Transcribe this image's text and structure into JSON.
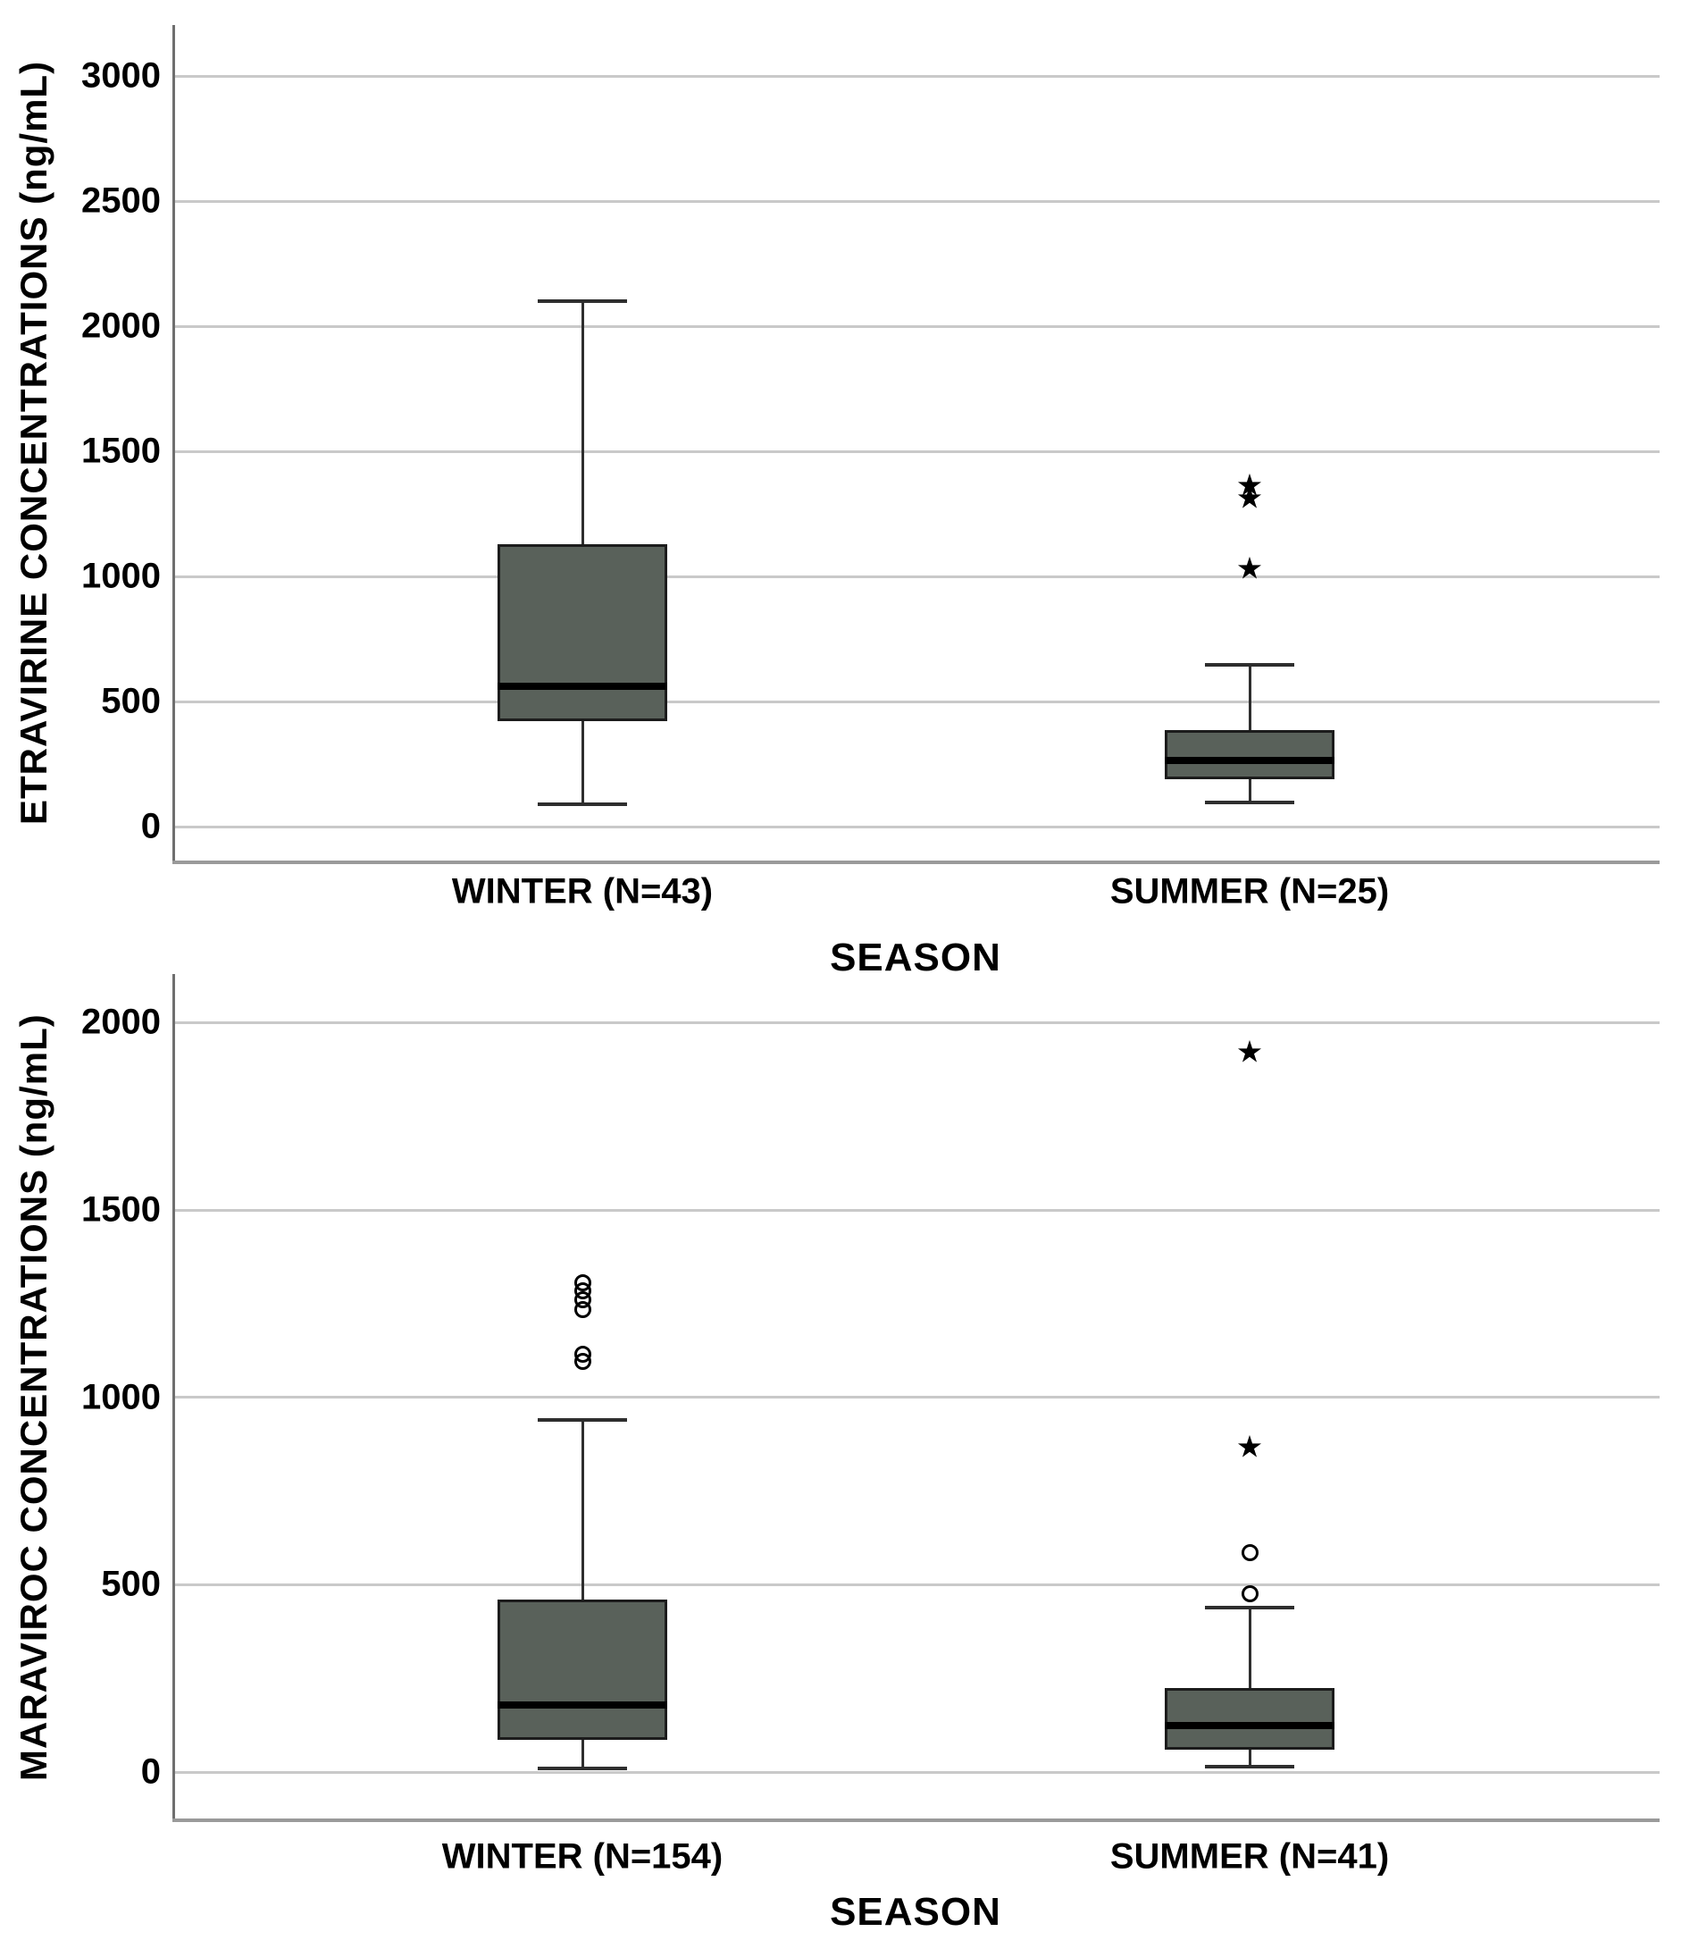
{
  "figure": {
    "background": "#ffffff",
    "colors": {
      "box_fill": "#59615a",
      "box_border": "#1c1c1c",
      "median": "#000000",
      "gridline": "#c9c9c9",
      "vertical_axis": "#6f6f6f",
      "bottom_axis": "#9a9a9a",
      "whisker": "#2e2e2e",
      "outlier": "#000000",
      "text": "#000000"
    }
  },
  "chart_data": [
    {
      "type": "box",
      "title": "",
      "ylabel": "ETRAVIRINE CONCENTRATIONS (ng/mL)",
      "xlabel": "SEASON",
      "yticks": [
        0,
        500,
        1000,
        1500,
        2000,
        2500,
        3000
      ],
      "ylim": [
        0,
        3100
      ],
      "grid": "horizontal",
      "legend_position": "none",
      "outlier_marker": "circle",
      "extreme_marker": "star",
      "groups": [
        {
          "label": "WINTER (N=43)",
          "n": 43,
          "whisker_low": 90,
          "q1": 420,
          "median": 560,
          "q3": 1130,
          "whisker_high": 2100,
          "outliers": [],
          "extremes": []
        },
        {
          "label": "SUMMER (N=25)",
          "n": 25,
          "whisker_low": 95,
          "q1": 190,
          "median": 265,
          "q3": 385,
          "whisker_high": 645,
          "outliers": [],
          "extremes": [
            1360,
            1310,
            1030
          ]
        }
      ]
    },
    {
      "type": "box",
      "title": "",
      "ylabel": "MARAVIROC CONCENTRATIONS (ng/mL)",
      "xlabel": "SEASON",
      "yticks": [
        0,
        500,
        1000,
        1500,
        2000
      ],
      "ylim": [
        0,
        2100
      ],
      "grid": "horizontal",
      "legend_position": "none",
      "outlier_marker": "circle",
      "extreme_marker": "star",
      "groups": [
        {
          "label": "WINTER (N=154)",
          "n": 154,
          "whisker_low": 10,
          "q1": 85,
          "median": 180,
          "q3": 460,
          "whisker_high": 940,
          "outliers": [
            1305,
            1285,
            1260,
            1235,
            1115,
            1095
          ],
          "extremes": []
        },
        {
          "label": "SUMMER (N=41)",
          "n": 41,
          "whisker_low": 15,
          "q1": 60,
          "median": 125,
          "q3": 225,
          "whisker_high": 440,
          "outliers": [
            585,
            475
          ],
          "extremes": [
            1920,
            865
          ]
        }
      ]
    }
  ]
}
